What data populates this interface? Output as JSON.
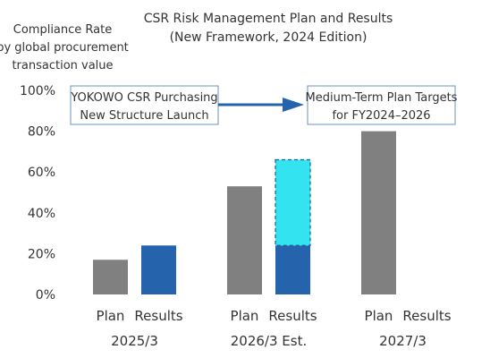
{
  "colors": {
    "plan": "#808080",
    "results": "#2563ad",
    "estimate": "#33e4f0",
    "estimate_border": "#1f5a9a",
    "callout_border": "#6d8fc4",
    "arrow": "#2563ad",
    "gridline": "#d9d9d9",
    "text": "#333333"
  },
  "chart_data": {
    "type": "bar",
    "title": "CSR Risk Management Plan and Results",
    "subtitle": "(New Framework, 2024 Edition)",
    "ylabel": [
      "Compliance Rate",
      "by global procurement",
      "transaction value"
    ],
    "ylim": [
      0,
      100
    ],
    "y_ticks": [
      0,
      20,
      40,
      60,
      80,
      100
    ],
    "y_tick_labels": [
      "0%",
      "20%",
      "40%",
      "60%",
      "80%",
      "100%"
    ],
    "grid": false,
    "groups": [
      {
        "label": "2025/3",
        "bars": [
          {
            "label": "Plan",
            "kind": "plan",
            "value": 17
          },
          {
            "label": "Results",
            "kind": "results",
            "value": 24
          }
        ]
      },
      {
        "label": "2026/3 Est.",
        "bars": [
          {
            "label": "Plan",
            "kind": "plan",
            "value": 53
          },
          {
            "label": "Results",
            "kind": "results",
            "value": 24,
            "estimated_top": 66
          }
        ]
      },
      {
        "label": "2027/3",
        "bars": [
          {
            "label": "Plan",
            "kind": "plan",
            "value": 80
          },
          {
            "label": "Results",
            "kind": "results",
            "value": null
          }
        ]
      }
    ],
    "annotations": {
      "left_box": [
        "YOKOWO CSR Purchasing",
        "New Structure Launch"
      ],
      "right_box": [
        "Medium-Term Plan Targets",
        "for FY2024–2026"
      ]
    }
  }
}
